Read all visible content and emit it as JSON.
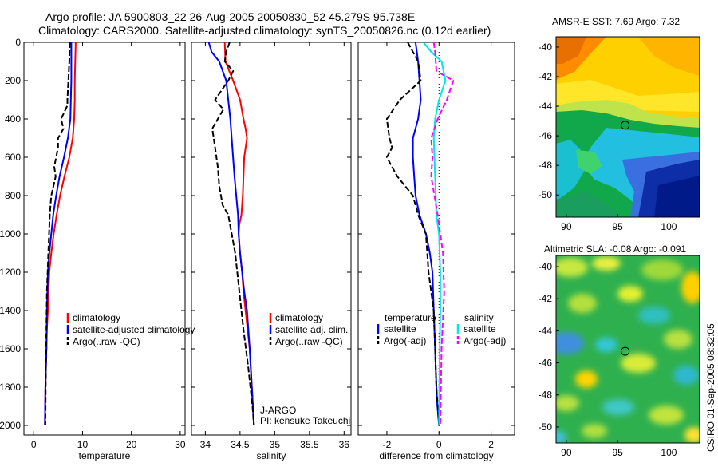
{
  "header": {
    "line1": "Argo profile: JA 5900803_22 26-Aug-2005 20050830_52 45.279S 95.738E",
    "line2": "Climatology: CARS2000. Satellite-adjusted climatology: synTS_20050826.nc (0.12d earlier)"
  },
  "side_label": "CSIRO 01-Sep-2005 08:32:05",
  "colors": {
    "climatology": "#ff0000",
    "satellite": "#0000ff",
    "argo": "#000000",
    "salinity_satellite": "#00e5ee",
    "salinity_argo": "#ff00ff"
  },
  "chart_data": [
    {
      "type": "line",
      "id": "temperature",
      "xlabel": "temperature",
      "ylabel": "",
      "xlim": [
        -2,
        31
      ],
      "ylim": [
        2050,
        0
      ],
      "xticks": [
        "0",
        "10",
        "20",
        "30"
      ],
      "yticks": [
        "0",
        "200",
        "400",
        "600",
        "800",
        "1000",
        "1200",
        "1400",
        "1600",
        "1800",
        "2000"
      ],
      "legend": [
        "climatology",
        "satellite-adjusted climatology",
        "Argo(..raw -QC)"
      ],
      "series": [
        {
          "name": "climatology",
          "color": "#ff0000",
          "style": "solid",
          "x": [
            8.6,
            8.5,
            8.4,
            8.4,
            8.3,
            8.0,
            7.3,
            6.3,
            5.4,
            4.7,
            4.1,
            3.6,
            3.2,
            2.9,
            2.7,
            2.6,
            2.4,
            2.3
          ],
          "y": [
            0,
            100,
            200,
            300,
            400,
            500,
            600,
            700,
            800,
            900,
            1000,
            1100,
            1200,
            1400,
            1500,
            1600,
            1800,
            2000
          ]
        },
        {
          "name": "satellite-adjusted climatology",
          "color": "#0000ff",
          "style": "solid",
          "x": [
            7.7,
            7.7,
            7.7,
            7.6,
            7.5,
            7.0,
            6.2,
            5.3,
            4.6,
            4.0,
            3.6,
            3.2,
            2.9,
            2.7,
            2.6,
            2.4,
            2.3
          ],
          "y": [
            0,
            100,
            200,
            300,
            400,
            500,
            600,
            700,
            800,
            900,
            1000,
            1100,
            1200,
            1400,
            1600,
            1800,
            2000
          ]
        },
        {
          "name": "Argo(..raw -QC)",
          "color": "#000000",
          "style": "dashed",
          "x": [
            7.4,
            7.3,
            7.1,
            6.9,
            6.9,
            5.6,
            6.1,
            5.0,
            5.0,
            4.2,
            4.5,
            3.6,
            3.3,
            3.0,
            2.7,
            2.6,
            2.5,
            2.4
          ],
          "y": [
            0,
            100,
            200,
            300,
            330,
            400,
            450,
            500,
            550,
            650,
            700,
            800,
            900,
            1100,
            1300,
            1500,
            1700,
            2000
          ]
        }
      ]
    },
    {
      "type": "line",
      "id": "salinity",
      "xlabel": "salinity",
      "ylabel": "",
      "xlim": [
        33.8,
        36.1
      ],
      "ylim": [
        2050,
        0
      ],
      "xticks": [
        "34",
        "34.5",
        "35",
        "35.5",
        "36"
      ],
      "legend": [
        "climatology",
        "satellite adj. clim.",
        "Argo(..raw -QC)"
      ],
      "annotations": [
        "J-ARGO",
        "PI: kensuke Takeuchi"
      ],
      "series": [
        {
          "name": "climatology",
          "color": "#ff0000",
          "style": "solid",
          "x": [
            34.28,
            34.29,
            34.4,
            34.5,
            34.55,
            34.58,
            34.6,
            34.56,
            34.55,
            34.54,
            34.52,
            34.49,
            34.48,
            34.5,
            34.53,
            34.55,
            34.58,
            34.61,
            34.64,
            34.67,
            34.7
          ],
          "y": [
            0,
            100,
            200,
            300,
            400,
            450,
            500,
            600,
            700,
            800,
            900,
            950,
            1000,
            1100,
            1200,
            1300,
            1400,
            1500,
            1600,
            1800,
            2000
          ]
        },
        {
          "name": "satellite adj. clim.",
          "color": "#0000ff",
          "style": "solid",
          "x": [
            34.05,
            34.09,
            34.2,
            34.3,
            34.33,
            34.36,
            34.38,
            34.42,
            34.47,
            34.48,
            34.5,
            34.53,
            34.56,
            34.6,
            34.64,
            34.67,
            34.7
          ],
          "y": [
            0,
            50,
            100,
            200,
            300,
            400,
            500,
            700,
            900,
            1000,
            1100,
            1200,
            1300,
            1400,
            1600,
            1800,
            2000
          ]
        },
        {
          "name": "Argo(..raw -QC)",
          "color": "#000000",
          "style": "dashed",
          "x": [
            34.35,
            34.3,
            34.28,
            34.4,
            34.33,
            34.14,
            34.26,
            34.1,
            34.14,
            34.18,
            34.2,
            34.25,
            34.33,
            34.43,
            34.49,
            34.55,
            34.62,
            34.68,
            34.7
          ],
          "y": [
            0,
            50,
            100,
            150,
            200,
            300,
            350,
            450,
            550,
            650,
            750,
            850,
            900,
            1100,
            1300,
            1500,
            1700,
            1900,
            2000
          ]
        }
      ]
    },
    {
      "type": "line",
      "id": "difference",
      "xlabel": "difference from climatology",
      "ylabel": "",
      "xlim": [
        -3.1,
        2.9
      ],
      "ylim": [
        2050,
        0
      ],
      "xticks": [
        "-2",
        "0",
        "2"
      ],
      "legend": [
        "temperature",
        "satellite",
        "Argo(-adj)",
        "salinity",
        "satellite",
        "Argo(-adj)"
      ],
      "series": [
        {
          "name": "satellite",
          "group": "temperature",
          "color": "#0000ff",
          "style": "solid",
          "x": [
            -0.9,
            -0.8,
            -0.75,
            -0.7,
            -0.8,
            -1.0,
            -1.0,
            -0.95,
            -0.9,
            -0.75,
            -0.5,
            -0.35,
            -0.25,
            -0.2,
            -0.15,
            -0.1,
            -0.06,
            0.0
          ],
          "y": [
            0,
            100,
            200,
            300,
            400,
            500,
            600,
            700,
            800,
            900,
            1000,
            1100,
            1200,
            1400,
            1600,
            1800,
            1900,
            2000
          ]
        },
        {
          "name": "Argo(-adj)",
          "group": "temperature",
          "color": "#000000",
          "style": "dashed",
          "x": [
            -1.2,
            -0.8,
            -0.7,
            -1.5,
            -2.0,
            -1.9,
            -1.8,
            -2.0,
            -1.6,
            -1.0,
            -0.8,
            -0.5,
            -0.4,
            -0.2,
            -0.15,
            -0.1,
            0.0
          ],
          "y": [
            0,
            100,
            200,
            300,
            400,
            500,
            550,
            600,
            700,
            800,
            900,
            1000,
            1200,
            1400,
            1600,
            1800,
            2000
          ]
        },
        {
          "name": "satellite",
          "group": "salinity",
          "color": "#00e5ee",
          "style": "solid",
          "x": [
            -0.6,
            -0.3,
            0.1,
            0.25,
            0.0,
            -0.15,
            -0.2,
            -0.15,
            -0.1,
            0.0,
            0.05,
            0.05,
            0.03,
            0.0
          ],
          "y": [
            0,
            50,
            100,
            200,
            300,
            400,
            500,
            700,
            900,
            1000,
            1200,
            1400,
            1600,
            2000
          ]
        },
        {
          "name": "Argo(-adj)",
          "group": "salinity",
          "color": "#ff00ff",
          "style": "dashed",
          "x": [
            -0.2,
            -0.15,
            -0.1,
            0.55,
            0.3,
            -0.05,
            -0.3,
            -0.25,
            -0.3,
            -0.05,
            0.15,
            0.2,
            0.1,
            0.05
          ],
          "y": [
            0,
            50,
            150,
            200,
            300,
            400,
            500,
            600,
            700,
            900,
            1100,
            1300,
            1600,
            2000
          ]
        }
      ]
    },
    {
      "type": "heatmap",
      "id": "sst_map",
      "title": "AMSR-E SST: 7.69 Argo: 7.32",
      "xlim": [
        89,
        103
      ],
      "ylim": [
        -51.5,
        -39.3
      ],
      "xticks": [
        "90",
        "95",
        "100"
      ],
      "yticks": [
        "-40",
        "-42",
        "-44",
        "-46",
        "-48",
        "-50"
      ],
      "marker": {
        "lon": 95.74,
        "lat": -45.28
      }
    },
    {
      "type": "heatmap",
      "id": "sla_map",
      "title": "Altimetric SLA: -0.08 Argo: -0.091",
      "xlim": [
        89,
        103
      ],
      "ylim": [
        -51,
        -39.3
      ],
      "xticks": [
        "90",
        "95",
        "100"
      ],
      "yticks": [
        "-40",
        "-42",
        "-44",
        "-46",
        "-48",
        "-50"
      ],
      "marker": {
        "lon": 95.74,
        "lat": -45.28
      }
    }
  ]
}
